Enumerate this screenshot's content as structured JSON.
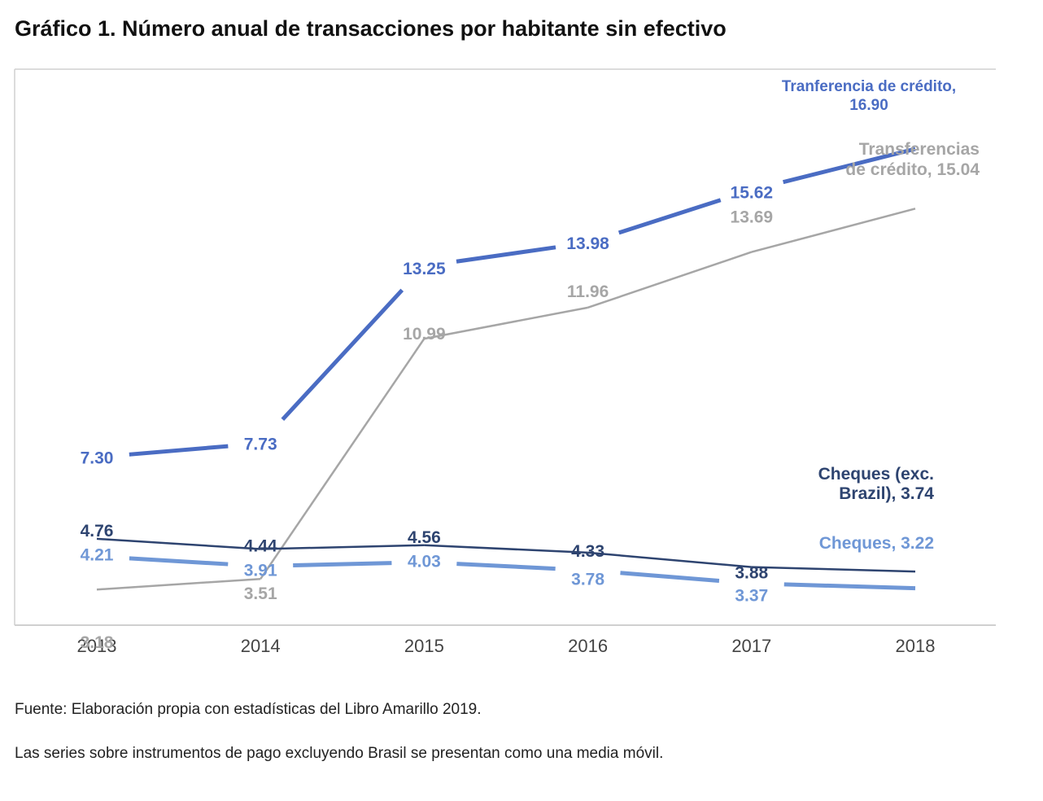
{
  "title": "Gráfico 1. Número anual de transacciones por habitante sin efectivo",
  "notes": {
    "source": "Fuente: Elaboración propia con estadísticas del Libro Amarillo 2019.",
    "series_note": "Las series sobre instrumentos de pago excluyendo Brasil se presentan como una media móvil."
  },
  "chart_data": {
    "type": "line",
    "categories": [
      "2013",
      "2014",
      "2015",
      "2016",
      "2017",
      "2018"
    ],
    "xlabel": "",
    "ylabel": "",
    "grid": false,
    "legend": "none (series labelled at line ends)",
    "series": [
      {
        "key": "transfer_exc_brazil",
        "values": [
          7.3,
          7.73,
          13.25,
          13.98,
          15.62,
          16.9
        ],
        "value_labels": [
          "7.30",
          "7.73",
          "13.25",
          "13.98",
          "15.62",
          "16.90"
        ],
        "end_label_lines": [
          "Tranferencia de crédito,",
          "16.90"
        ],
        "color": "#4A6CC3"
      },
      {
        "key": "transfer",
        "values": [
          3.18,
          3.51,
          10.99,
          11.96,
          13.69,
          15.04
        ],
        "value_labels": [
          "3.18",
          "3.51",
          "10.99",
          "11.96",
          "13.69",
          "15.04"
        ],
        "end_label_lines": [
          "Transferencias",
          "de crédito, 15.04"
        ],
        "color": "#A6A6A6"
      },
      {
        "key": "cheques_exc_brazil",
        "values": [
          4.76,
          4.44,
          4.56,
          4.33,
          3.88,
          3.74
        ],
        "value_labels": [
          "4.76",
          "4.44",
          "4.56",
          "4.33",
          "3.88",
          "3.74"
        ],
        "end_label_lines": [
          "Cheques (exc.",
          "Brazil), 3.74"
        ],
        "color": "#2E4470"
      },
      {
        "key": "cheques",
        "values": [
          4.21,
          3.91,
          4.03,
          3.78,
          3.37,
          3.22
        ],
        "value_labels": [
          "4.21",
          "3.91",
          "4.03",
          "3.78",
          "3.37",
          "3.22"
        ],
        "end_label_lines": [
          "Cheques, 3.22"
        ],
        "color": "#6F97D6"
      }
    ]
  }
}
